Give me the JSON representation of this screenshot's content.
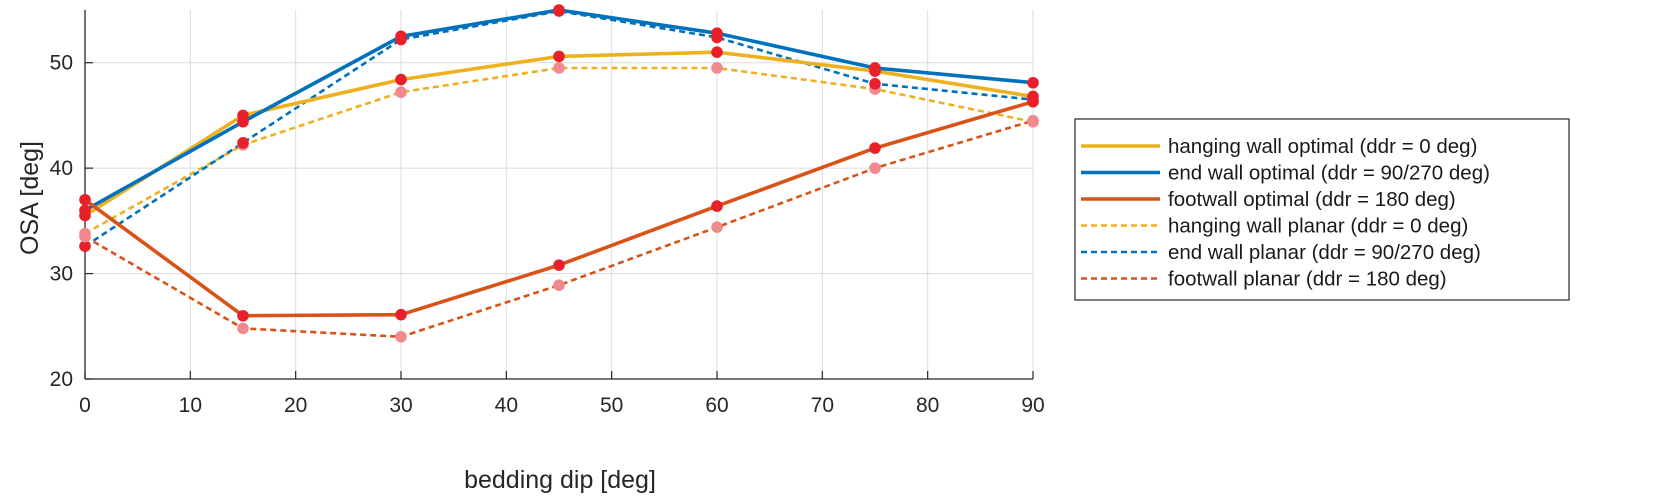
{
  "chart_data": {
    "type": "line",
    "title": "",
    "xlabel": "bedding dip [deg]",
    "ylabel": "OSA [deg]",
    "xlim": [
      0,
      90
    ],
    "ylim": [
      20,
      55
    ],
    "xticks": [
      0,
      10,
      20,
      30,
      40,
      50,
      60,
      70,
      80,
      90
    ],
    "yticks": [
      20,
      30,
      40,
      50
    ],
    "grid": true,
    "legend_position": "outside-right",
    "x": [
      0,
      15,
      30,
      45,
      60,
      75,
      90
    ],
    "series": [
      {
        "name": "hanging wall optimal (ddr = 0 deg)",
        "color": "#EDB120",
        "style": "solid",
        "marker_color": "#E8202A",
        "values": [
          35.5,
          45.0,
          48.4,
          50.6,
          51.0,
          49.2,
          46.8
        ]
      },
      {
        "name": "end wall optimal (ddr = 90/270 deg)",
        "color": "#0072BD",
        "style": "solid",
        "marker_color": "#E8202A",
        "values": [
          36.0,
          44.4,
          52.5,
          55.0,
          52.8,
          49.5,
          48.1
        ]
      },
      {
        "name": "footwall optimal (ddr = 180 deg)",
        "color": "#D95319",
        "style": "solid",
        "marker_color": "#E8202A",
        "values": [
          37.0,
          26.0,
          26.1,
          30.8,
          36.4,
          41.9,
          46.3
        ]
      },
      {
        "name": "hanging wall planar (ddr = 0 deg)",
        "color": "#EDB120",
        "style": "dashed",
        "marker_color": "#F08A8E",
        "values": [
          33.8,
          42.2,
          47.2,
          49.5,
          49.5,
          47.5,
          44.4
        ]
      },
      {
        "name": "end wall planar (ddr = 90/270 deg)",
        "color": "#0072BD",
        "style": "dashed",
        "marker_color": "#E8202A",
        "values": [
          32.6,
          42.4,
          52.2,
          54.9,
          52.4,
          48.0,
          46.5
        ]
      },
      {
        "name": "footwall planar (ddr = 180 deg)",
        "color": "#D95319",
        "style": "dashed",
        "marker_color": "#F08A8E",
        "values": [
          33.5,
          24.8,
          24.0,
          28.9,
          34.4,
          40.0,
          44.5
        ]
      }
    ]
  }
}
